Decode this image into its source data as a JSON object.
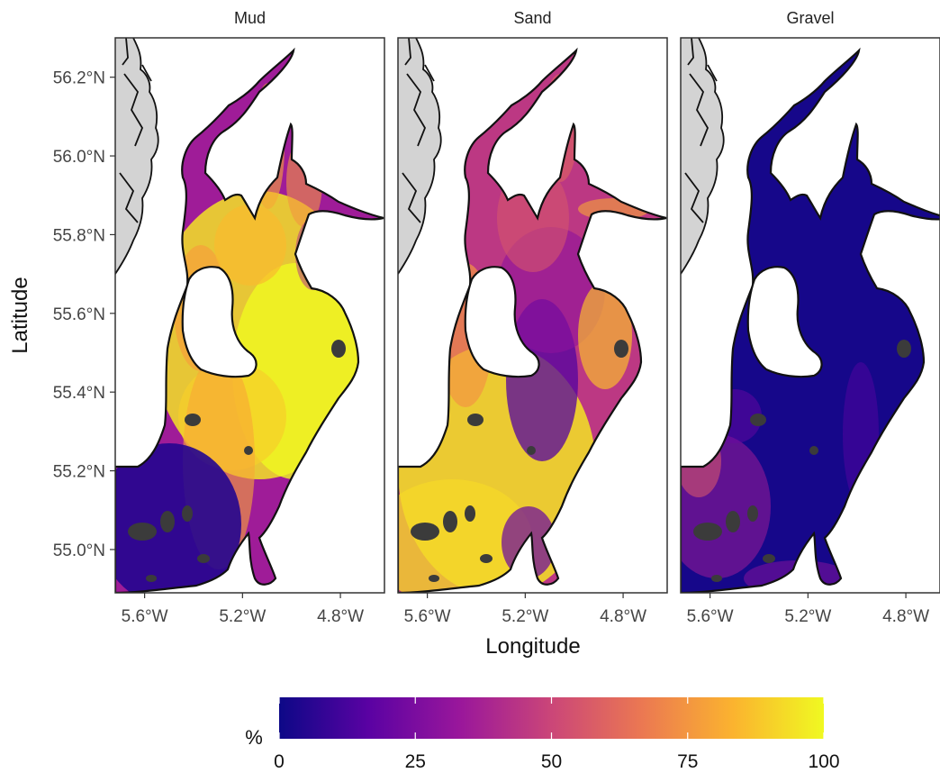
{
  "figure": {
    "y_axis_label": "Latitude",
    "x_axis_label": "Longitude",
    "legend_title": "%"
  },
  "panels": [
    {
      "label": "Mud"
    },
    {
      "label": "Sand"
    },
    {
      "label": "Gravel"
    }
  ],
  "chart_data": {
    "type": "heatmap",
    "facets": [
      "Mud",
      "Sand",
      "Gravel"
    ],
    "xlabel": "Longitude",
    "ylabel": "Latitude",
    "xlim": [
      -5.72,
      -4.62
    ],
    "ylim": [
      54.89,
      56.3
    ],
    "x_ticks": [
      {
        "value": -5.6,
        "label": "5.6°W"
      },
      {
        "value": -5.2,
        "label": "5.2°W"
      },
      {
        "value": -4.8,
        "label": "4.8°W"
      }
    ],
    "y_ticks": [
      {
        "value": 55.0,
        "label": "55.0°N"
      },
      {
        "value": 55.2,
        "label": "55.2°N"
      },
      {
        "value": 55.4,
        "label": "55.4°N"
      },
      {
        "value": 55.6,
        "label": "55.6°N"
      },
      {
        "value": 55.8,
        "label": "55.8°N"
      },
      {
        "value": 56.0,
        "label": "56.0°N"
      },
      {
        "value": 56.2,
        "label": "56.2°N"
      }
    ],
    "colorbar": {
      "title": "%",
      "min": 0,
      "max": 100,
      "ticks": [
        {
          "value": 0,
          "label": "0"
        },
        {
          "value": 25,
          "label": "25"
        },
        {
          "value": 50,
          "label": "50"
        },
        {
          "value": 75,
          "label": "75"
        },
        {
          "value": 100,
          "label": "100"
        }
      ],
      "colors": [
        "#0d0887",
        "#5b02a3",
        "#9a179b",
        "#cb4678",
        "#eb7852",
        "#fbb32f",
        "#f0f921"
      ],
      "placement": "bottom"
    },
    "grid": false
  },
  "colors": {
    "land": "#d3d3d3",
    "no_data": "#3b3b3b",
    "coast": "#111111"
  }
}
